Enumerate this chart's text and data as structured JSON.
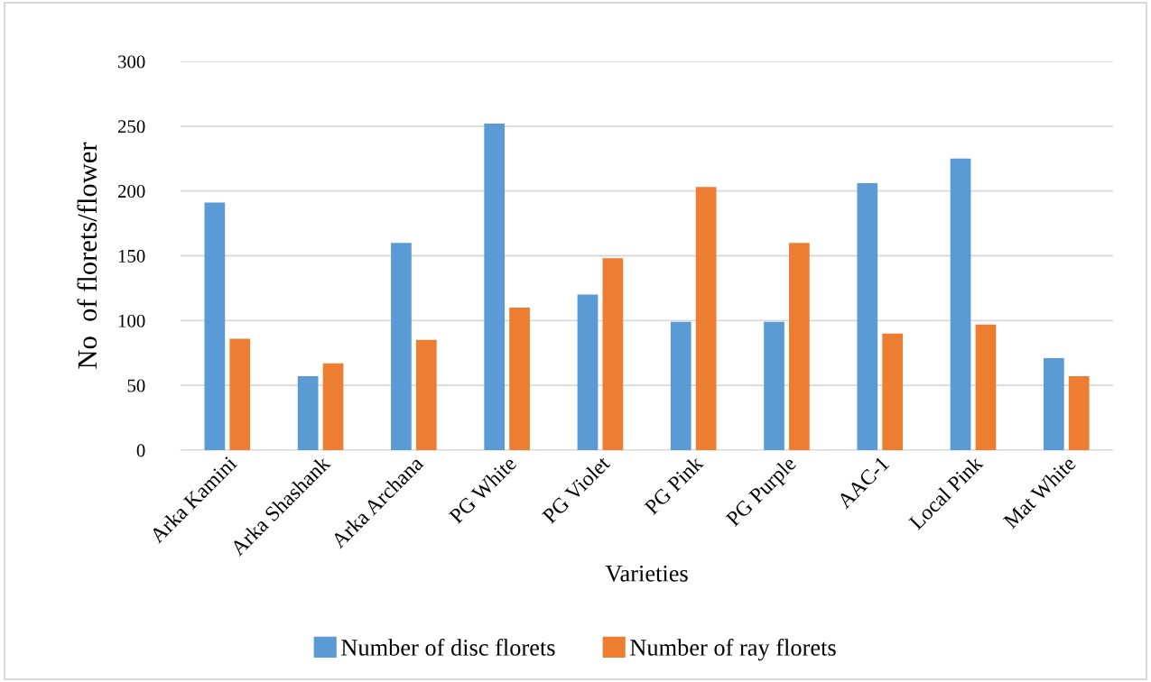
{
  "chart_data": {
    "type": "bar",
    "xlabel": "Varieties",
    "ylabel": "No  of florets/flower",
    "categories": [
      "Arka Kamini",
      "Arka Shashank",
      "Arka Archana",
      "PG White",
      "PG Violet",
      "PG Pink",
      "PG Purple",
      "AAC-1",
      "Local Pink",
      "Mat White"
    ],
    "series": [
      {
        "name": "Number of disc florets",
        "color": "#5b9bd5",
        "values": [
          191,
          57,
          160,
          252,
          120,
          99,
          99,
          206,
          225,
          71
        ]
      },
      {
        "name": "Number of ray florets",
        "color": "#ed7d31",
        "values": [
          86,
          67,
          85,
          110,
          148,
          203,
          160,
          90,
          97,
          57
        ]
      }
    ],
    "ylim": [
      0,
      300
    ],
    "yticks": [
      0,
      50,
      100,
      150,
      200,
      250,
      300
    ],
    "grid": "y",
    "legend": "bottom"
  }
}
